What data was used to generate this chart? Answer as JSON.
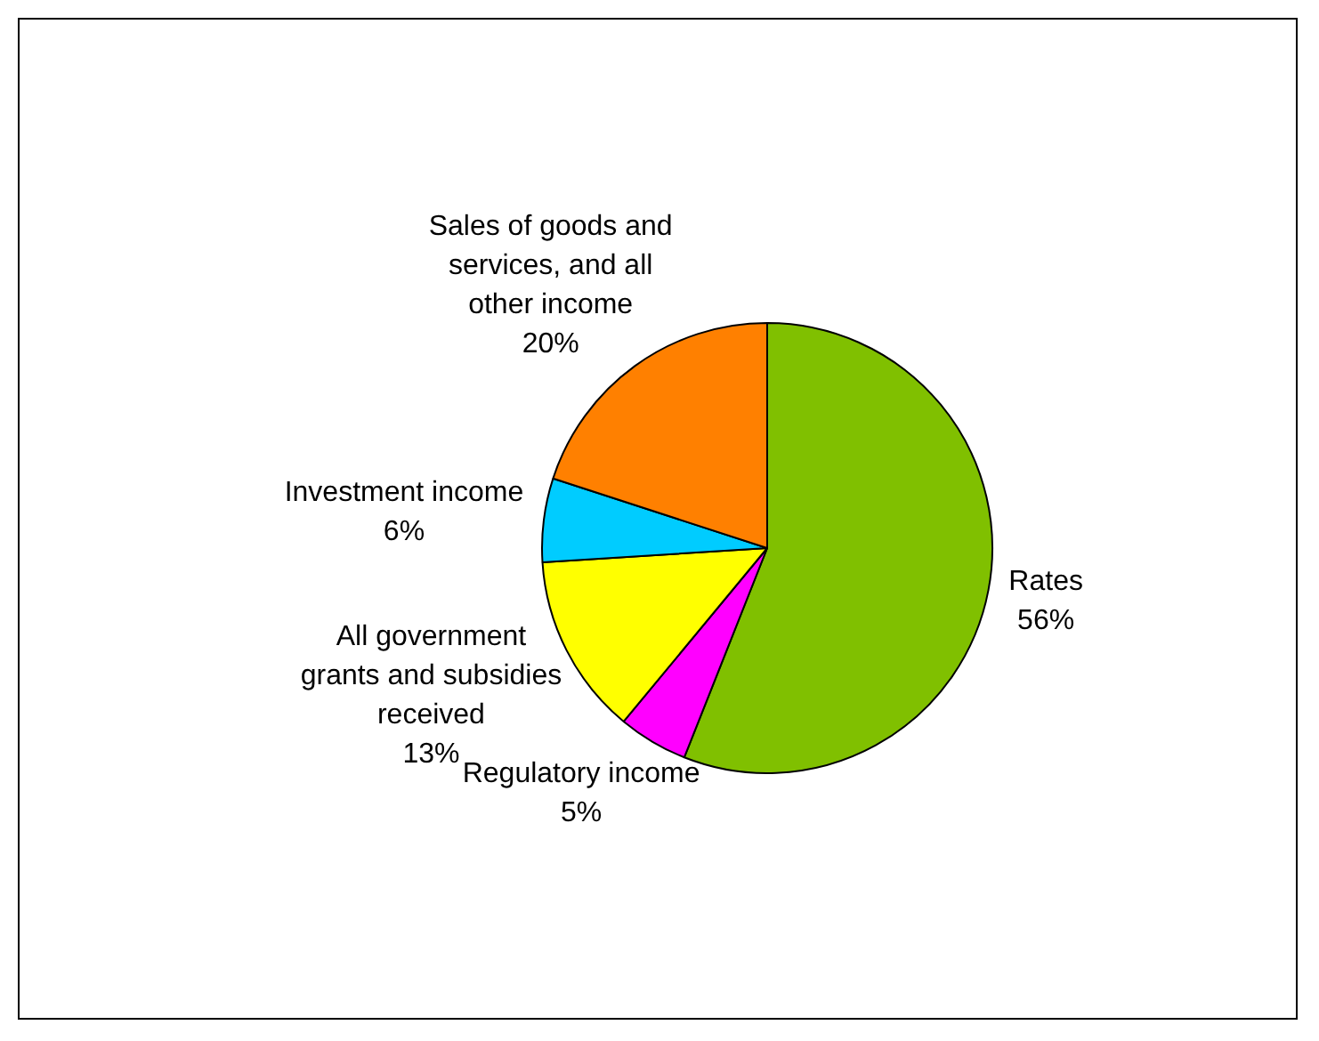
{
  "chart_data": {
    "type": "pie",
    "categories": [
      "Rates",
      "Regulatory income",
      "All government grants and subsidies received",
      "Investment income",
      "Sales of goods and services, and all other income"
    ],
    "values": [
      56,
      5,
      13,
      6,
      20
    ],
    "value_labels": [
      "56%",
      "5%",
      "13%",
      "6%",
      "20%"
    ],
    "colors": [
      "#80c000",
      "#ff00ff",
      "#ffff00",
      "#00ccff",
      "#ff8000"
    ],
    "legend": false
  }
}
